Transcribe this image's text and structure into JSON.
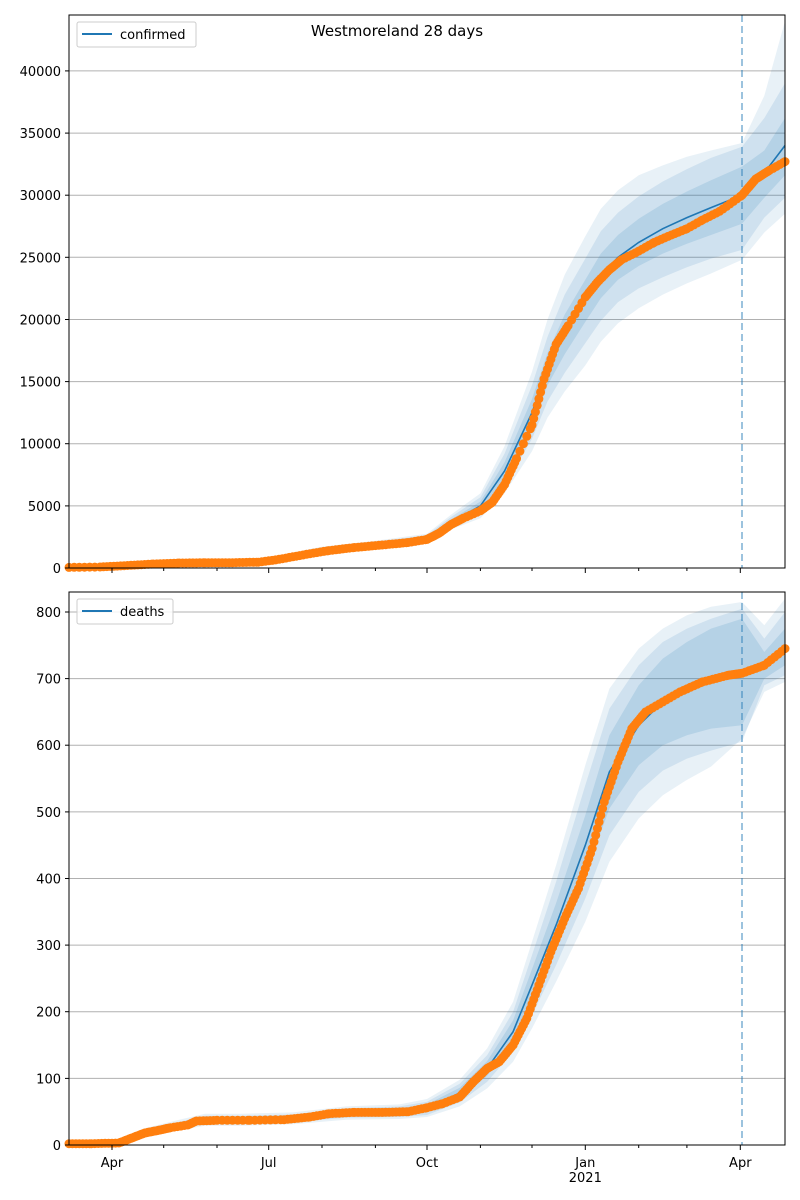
{
  "figure_title": "Westmoreland 28 days",
  "colors": {
    "model_line": "#1f77b4",
    "band": "#1f77b4",
    "observed": "#ff7f0e",
    "grid": "#b0b0b0",
    "forecast_line": "#1f77b4"
  },
  "chart_data": [
    {
      "type": "line",
      "legend_label": "confirmed",
      "legend_position": "top-left",
      "grid": "horizontal",
      "xlim": [
        "2020-03-07",
        "2021-04-27"
      ],
      "ylim": [
        0,
        44500
      ],
      "yticks": [
        0,
        5000,
        10000,
        15000,
        20000,
        25000,
        30000,
        35000,
        40000
      ],
      "forecast_start": "2021-04-02",
      "model": {
        "dates": [
          "2020-03-07",
          "2020-04-15",
          "2020-05-15",
          "2020-06-15",
          "2020-07-01",
          "2020-08-01",
          "2020-09-01",
          "2020-10-01",
          "2020-10-15",
          "2020-11-01",
          "2020-11-15",
          "2020-12-01",
          "2020-12-10",
          "2020-12-20",
          "2021-01-01",
          "2021-01-10",
          "2021-01-20",
          "2021-02-01",
          "2021-02-15",
          "2021-03-01",
          "2021-03-15",
          "2021-04-02",
          "2021-04-15",
          "2021-04-27"
        ],
        "median": [
          50,
          300,
          450,
          450,
          700,
          1500,
          1900,
          2400,
          3700,
          5000,
          7800,
          12500,
          16000,
          18800,
          21500,
          23500,
          25000,
          26200,
          27300,
          28200,
          29000,
          30000,
          31800,
          34000
        ],
        "band_50": [
          [
            50,
            50
          ],
          [
            280,
            320
          ],
          [
            420,
            480
          ],
          [
            420,
            480
          ],
          [
            650,
            750
          ],
          [
            1420,
            1580
          ],
          [
            1800,
            2000
          ],
          [
            2280,
            2520
          ],
          [
            3500,
            3900
          ],
          [
            4650,
            5350
          ],
          [
            7200,
            8500
          ],
          [
            11400,
            13600
          ],
          [
            14700,
            17300
          ],
          [
            17200,
            20400
          ],
          [
            19800,
            23200
          ],
          [
            21700,
            25300
          ],
          [
            23200,
            26800
          ],
          [
            24300,
            28100
          ],
          [
            25300,
            29300
          ],
          [
            26100,
            30300
          ],
          [
            26800,
            31200
          ],
          [
            27700,
            32300
          ],
          [
            29800,
            33600
          ],
          [
            31600,
            36200
          ]
        ],
        "band_80": [
          [
            50,
            50
          ],
          [
            260,
            340
          ],
          [
            400,
            500
          ],
          [
            400,
            500
          ],
          [
            600,
            800
          ],
          [
            1350,
            1650
          ],
          [
            1700,
            2100
          ],
          [
            2150,
            2650
          ],
          [
            3300,
            4100
          ],
          [
            4300,
            5700
          ],
          [
            6600,
            9200
          ],
          [
            10400,
            14700
          ],
          [
            13400,
            18600
          ],
          [
            15700,
            22000
          ],
          [
            18100,
            24900
          ],
          [
            19900,
            27100
          ],
          [
            21400,
            28600
          ],
          [
            22500,
            29900
          ],
          [
            23400,
            31100
          ],
          [
            24200,
            32100
          ],
          [
            24900,
            33000
          ],
          [
            25600,
            33900
          ],
          [
            28200,
            36200
          ],
          [
            29800,
            39000
          ]
        ],
        "band_95": [
          [
            50,
            50
          ],
          [
            240,
            360
          ],
          [
            380,
            520
          ],
          [
            380,
            520
          ],
          [
            550,
            850
          ],
          [
            1280,
            1720
          ],
          [
            1600,
            2200
          ],
          [
            2050,
            2750
          ],
          [
            3100,
            4300
          ],
          [
            4000,
            6000
          ],
          [
            6000,
            9800
          ],
          [
            9400,
            15800
          ],
          [
            12100,
            20000
          ],
          [
            14200,
            23600
          ],
          [
            16300,
            26700
          ],
          [
            18200,
            28900
          ],
          [
            19700,
            30400
          ],
          [
            20900,
            31600
          ],
          [
            22000,
            32400
          ],
          [
            22900,
            33100
          ],
          [
            23700,
            33600
          ],
          [
            24800,
            34200
          ],
          [
            27000,
            38000
          ],
          [
            28500,
            44000
          ]
        ]
      },
      "observed": {
        "dates": [
          "2020-03-07",
          "2020-03-25",
          "2020-04-10",
          "2020-04-25",
          "2020-05-10",
          "2020-05-25",
          "2020-06-10",
          "2020-06-25",
          "2020-07-05",
          "2020-07-15",
          "2020-07-25",
          "2020-08-05",
          "2020-08-20",
          "2020-09-05",
          "2020-09-20",
          "2020-10-01",
          "2020-10-08",
          "2020-10-15",
          "2020-10-22",
          "2020-11-01",
          "2020-11-08",
          "2020-11-15",
          "2020-11-22",
          "2020-12-01",
          "2020-12-08",
          "2020-12-15",
          "2020-12-22",
          "2021-01-01",
          "2021-01-08",
          "2021-01-15",
          "2021-01-22",
          "2021-02-01",
          "2021-02-10",
          "2021-02-20",
          "2021-03-01",
          "2021-03-10",
          "2021-03-20",
          "2021-04-02",
          "2021-04-10",
          "2021-04-18",
          "2021-04-27"
        ],
        "values": [
          50,
          80,
          200,
          320,
          400,
          420,
          430,
          470,
          650,
          900,
          1150,
          1400,
          1650,
          1850,
          2050,
          2300,
          2800,
          3500,
          4000,
          4600,
          5300,
          6700,
          8800,
          11500,
          15200,
          18000,
          19500,
          21800,
          23000,
          24000,
          24800,
          25500,
          26200,
          26800,
          27300,
          28000,
          28700,
          30000,
          31300,
          32000,
          32700
        ]
      }
    },
    {
      "type": "line",
      "legend_label": "deaths",
      "legend_position": "top-left",
      "grid": "horizontal",
      "xlim": [
        "2020-03-07",
        "2021-04-27"
      ],
      "ylim": [
        0,
        830
      ],
      "yticks": [
        0,
        100,
        200,
        300,
        400,
        500,
        600,
        700,
        800
      ],
      "xticks": [
        "Apr",
        "Jul",
        "Oct",
        "Jan",
        "Apr"
      ],
      "xtick_dates": [
        "2020-04-01",
        "2020-07-01",
        "2020-10-01",
        "2021-01-01",
        "2021-04-01"
      ],
      "xtick_sublabel": "2021",
      "forecast_start": "2021-04-02",
      "model": {
        "dates": [
          "2020-03-07",
          "2020-04-05",
          "2020-04-20",
          "2020-05-10",
          "2020-05-25",
          "2020-06-15",
          "2020-07-15",
          "2020-08-15",
          "2020-09-15",
          "2020-10-01",
          "2020-10-20",
          "2020-11-05",
          "2020-11-20",
          "2020-12-01",
          "2020-12-15",
          "2021-01-01",
          "2021-01-15",
          "2021-02-01",
          "2021-02-15",
          "2021-03-01",
          "2021-03-15",
          "2021-04-02",
          "2021-04-15",
          "2021-04-27"
        ],
        "median": [
          2,
          3,
          18,
          30,
          38,
          38,
          40,
          48,
          50,
          55,
          78,
          115,
          170,
          240,
          330,
          450,
          560,
          630,
          665,
          685,
          700,
          710,
          722,
          745
        ],
        "band_50": [
          [
            2,
            2
          ],
          [
            2,
            4
          ],
          [
            16,
            20
          ],
          [
            27,
            33
          ],
          [
            34,
            42
          ],
          [
            34,
            42
          ],
          [
            36,
            44
          ],
          [
            44,
            52
          ],
          [
            45,
            55
          ],
          [
            49,
            61
          ],
          [
            70,
            86
          ],
          [
            104,
            126
          ],
          [
            153,
            187
          ],
          [
            216,
            264
          ],
          [
            297,
            363
          ],
          [
            405,
            495
          ],
          [
            505,
            615
          ],
          [
            570,
            690
          ],
          [
            600,
            730
          ],
          [
            615,
            755
          ],
          [
            625,
            775
          ],
          [
            630,
            790
          ],
          [
            700,
            740
          ],
          [
            720,
            775
          ]
        ],
        "band_80": [
          [
            2,
            2
          ],
          [
            2,
            4
          ],
          [
            14,
            22
          ],
          [
            25,
            35
          ],
          [
            32,
            44
          ],
          [
            32,
            44
          ],
          [
            34,
            46
          ],
          [
            41,
            55
          ],
          [
            42,
            58
          ],
          [
            45,
            65
          ],
          [
            64,
            92
          ],
          [
            95,
            135
          ],
          [
            140,
            200
          ],
          [
            195,
            285
          ],
          [
            270,
            395
          ],
          [
            370,
            540
          ],
          [
            465,
            655
          ],
          [
            530,
            720
          ],
          [
            562,
            755
          ],
          [
            580,
            775
          ],
          [
            592,
            790
          ],
          [
            605,
            805
          ],
          [
            690,
            760
          ],
          [
            705,
            800
          ]
        ],
        "band_95": [
          [
            2,
            2
          ],
          [
            2,
            5
          ],
          [
            12,
            25
          ],
          [
            22,
            38
          ],
          [
            29,
            47
          ],
          [
            29,
            47
          ],
          [
            31,
            49
          ],
          [
            38,
            58
          ],
          [
            39,
            61
          ],
          [
            42,
            69
          ],
          [
            58,
            98
          ],
          [
            85,
            145
          ],
          [
            125,
            215
          ],
          [
            175,
            305
          ],
          [
            245,
            420
          ],
          [
            335,
            570
          ],
          [
            425,
            685
          ],
          [
            490,
            745
          ],
          [
            525,
            775
          ],
          [
            548,
            795
          ],
          [
            568,
            808
          ],
          [
            610,
            815
          ],
          [
            680,
            780
          ],
          [
            695,
            820
          ]
        ]
      },
      "observed": {
        "dates": [
          "2020-03-07",
          "2020-03-20",
          "2020-04-05",
          "2020-04-12",
          "2020-04-20",
          "2020-04-28",
          "2020-05-05",
          "2020-05-15",
          "2020-05-20",
          "2020-06-01",
          "2020-06-20",
          "2020-07-10",
          "2020-07-25",
          "2020-08-05",
          "2020-08-20",
          "2020-09-05",
          "2020-09-20",
          "2020-10-01",
          "2020-10-10",
          "2020-10-20",
          "2020-10-28",
          "2020-11-05",
          "2020-11-12",
          "2020-11-20",
          "2020-11-28",
          "2020-12-05",
          "2020-12-12",
          "2020-12-20",
          "2020-12-28",
          "2021-01-05",
          "2021-01-12",
          "2021-01-20",
          "2021-01-28",
          "2021-02-05",
          "2021-02-15",
          "2021-02-25",
          "2021-03-10",
          "2021-03-25",
          "2021-04-02",
          "2021-04-15",
          "2021-04-27"
        ],
        "values": [
          2,
          2,
          3,
          10,
          18,
          22,
          26,
          30,
          36,
          37,
          37,
          38,
          42,
          47,
          49,
          49,
          50,
          56,
          62,
          72,
          95,
          115,
          125,
          150,
          190,
          240,
          290,
          340,
          385,
          445,
          515,
          575,
          625,
          650,
          665,
          680,
          695,
          705,
          708,
          720,
          745
        ]
      }
    }
  ]
}
